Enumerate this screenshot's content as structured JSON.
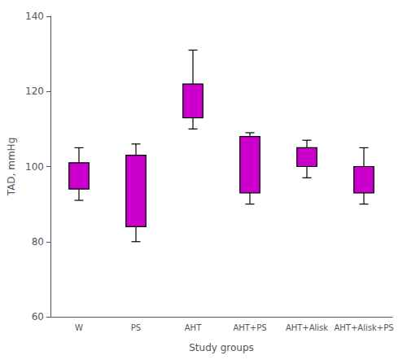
{
  "chart_data": {
    "type": "box",
    "categories": [
      "W",
      "PS",
      "AHT",
      "AHT+PS",
      "AHT+Alisk",
      "AHT+Alisk+PS"
    ],
    "boxes": [
      {
        "q1": 94,
        "q3": 101,
        "whisker_low": 91,
        "whisker_high": 105
      },
      {
        "q1": 84,
        "q3": 103,
        "whisker_low": 80,
        "whisker_high": 106
      },
      {
        "q1": 113,
        "q3": 122,
        "whisker_low": 110,
        "whisker_high": 131
      },
      {
        "q1": 93,
        "q3": 108,
        "whisker_low": 90,
        "whisker_high": 109
      },
      {
        "q1": 100,
        "q3": 105,
        "whisker_low": 97,
        "whisker_high": 107
      },
      {
        "q1": 93,
        "q3": 100,
        "whisker_low": 90,
        "whisker_high": 105
      }
    ],
    "color": "#CC00CC",
    "xlabel": "Study groups",
    "ylabel": "TAD, mmHg",
    "ylim": [
      60,
      140
    ],
    "yticks": [
      60,
      80,
      100,
      120,
      140
    ],
    "grid": false
  }
}
